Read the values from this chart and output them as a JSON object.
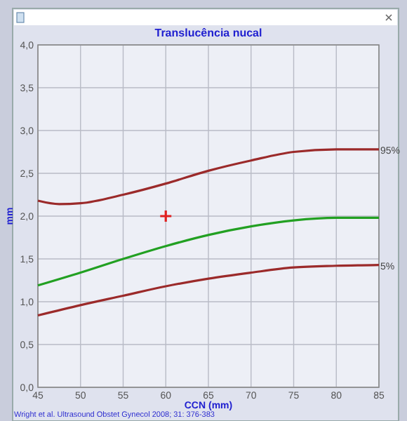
{
  "chart_data": {
    "type": "line",
    "title": "Translucência nucal",
    "xlabel": "CCN (mm)",
    "ylabel": "mm",
    "annotations": [
      "Wright et al. Ultrasound Obstet Gynecol 2008; 31: 376-383"
    ],
    "xlim": [
      45,
      85
    ],
    "xticks": [
      45,
      50,
      55,
      60,
      65,
      70,
      75,
      80,
      85
    ],
    "ylim": [
      0,
      4
    ],
    "yticks": [
      {
        "value": 0,
        "label": "0,0"
      },
      {
        "value": 0.5,
        "label": "0,5"
      },
      {
        "value": 1,
        "label": "1,0"
      },
      {
        "value": 1.5,
        "label": "1,5"
      },
      {
        "value": 2,
        "label": "2,0"
      },
      {
        "value": 2.5,
        "label": "2,5"
      },
      {
        "value": 3,
        "label": "3,0"
      },
      {
        "value": 3.5,
        "label": "3,5"
      },
      {
        "value": 4,
        "label": "4,0"
      }
    ],
    "grid": true,
    "marker": "none",
    "line_style": "solid",
    "series": [
      {
        "name": "95%",
        "color": "#9b2a2a",
        "x": [
          45,
          47.5,
          50,
          55,
          60,
          65,
          70,
          75,
          80,
          85
        ],
        "values": [
          2.18,
          2.14,
          2.15,
          2.25,
          2.38,
          2.53,
          2.65,
          2.75,
          2.78,
          2.78
        ]
      },
      {
        "color": "#22a022",
        "x": [
          45,
          50,
          55,
          60,
          65,
          70,
          75,
          80,
          85
        ],
        "values": [
          1.19,
          1.34,
          1.5,
          1.65,
          1.78,
          1.88,
          1.95,
          1.98,
          1.98
        ]
      },
      {
        "name": "5%",
        "color": "#9b2a2a",
        "x": [
          45,
          50,
          55,
          60,
          65,
          70,
          75,
          80,
          85
        ],
        "values": [
          0.84,
          0.96,
          1.07,
          1.18,
          1.27,
          1.34,
          1.4,
          1.42,
          1.43
        ]
      },
      {
        "type": "scatter",
        "marker": "cross",
        "color": "#e02020",
        "x": [
          60
        ],
        "values": [
          2
        ]
      }
    ]
  }
}
